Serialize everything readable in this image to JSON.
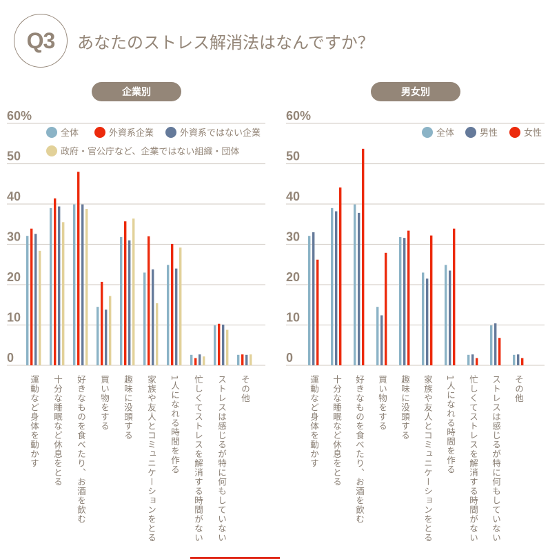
{
  "header": {
    "badge": "Q3",
    "title": "あなたのストレス解消法はなんですか？"
  },
  "colors": {
    "all": "#8bb3c6",
    "foreign": "#ec2a0c",
    "non_foreign": "#657a9a",
    "gov": "#e2d199",
    "male": "#657a9a",
    "female": "#ec2a0c",
    "text": "#948678",
    "grid": "#d9d3cd"
  },
  "chart_data": [
    {
      "type": "bar",
      "title": "企業別",
      "ylim": [
        0,
        60
      ],
      "yticks": [
        "0",
        "10",
        "20",
        "30",
        "40",
        "50",
        "60%"
      ],
      "legend_placement": "top",
      "categories": [
        "運動など身体を動かす",
        "十分な睡眠など休息をとる",
        "好きなものを食べたり、お酒を飲む",
        "買い物をする",
        "趣味に没頭する",
        "家族や友人とコミュニケーションをとる",
        "1人になれる時間を作る",
        "忙しくてストレスを解消する時間がない",
        "ストレスは感じるが特に何もしていない",
        "その他"
      ],
      "series": [
        {
          "name": "全体",
          "color": "#8bb3c6",
          "values": [
            32.1,
            39.0,
            39.9,
            14.5,
            31.8,
            23.0,
            24.9,
            2.6,
            9.9,
            2.6
          ]
        },
        {
          "name": "外資系企業",
          "color": "#ec2a0c",
          "values": [
            33.9,
            41.4,
            48.0,
            20.7,
            35.7,
            32.0,
            30.1,
            1.8,
            10.3,
            2.7
          ]
        },
        {
          "name": "外資系ではない企業",
          "color": "#657a9a",
          "values": [
            32.6,
            39.4,
            39.9,
            13.8,
            31.0,
            23.8,
            24.0,
            2.7,
            10.1,
            2.6
          ]
        },
        {
          "name": "政府・官公庁など、企業ではない組織・団体",
          "color": "#e2d199",
          "values": [
            28.4,
            35.5,
            38.8,
            17.2,
            36.4,
            15.4,
            29.2,
            2.2,
            8.8,
            2.7
          ]
        }
      ]
    },
    {
      "type": "bar",
      "title": "男女別",
      "ylim": [
        0,
        60
      ],
      "yticks": [
        "0",
        "10",
        "20",
        "30",
        "40",
        "50",
        "60%"
      ],
      "legend_placement": "top-right",
      "categories": [
        "運動など身体を動かす",
        "十分な睡眠など休息をとる",
        "好きなものを食べたり、お酒を飲む",
        "買い物をする",
        "趣味に没頭する",
        "家族や友人とコミュニケーションをとる",
        "1人になれる時間を作る",
        "忙しくてストレスを解消する時間がない",
        "ストレスは感じるが特に何もしていない",
        "その他"
      ],
      "series": [
        {
          "name": "全体",
          "color": "#8bb3c6",
          "values": [
            32.1,
            39.0,
            39.9,
            14.5,
            31.8,
            23.0,
            24.9,
            2.6,
            9.9,
            2.6
          ]
        },
        {
          "name": "男性",
          "color": "#657a9a",
          "values": [
            33.0,
            38.2,
            37.8,
            12.4,
            31.6,
            21.5,
            23.5,
            2.7,
            10.4,
            2.7
          ]
        },
        {
          "name": "女性",
          "color": "#ec2a0c",
          "values": [
            26.2,
            44.1,
            53.7,
            27.9,
            33.4,
            32.2,
            33.9,
            1.8,
            6.8,
            1.8
          ]
        }
      ]
    }
  ]
}
